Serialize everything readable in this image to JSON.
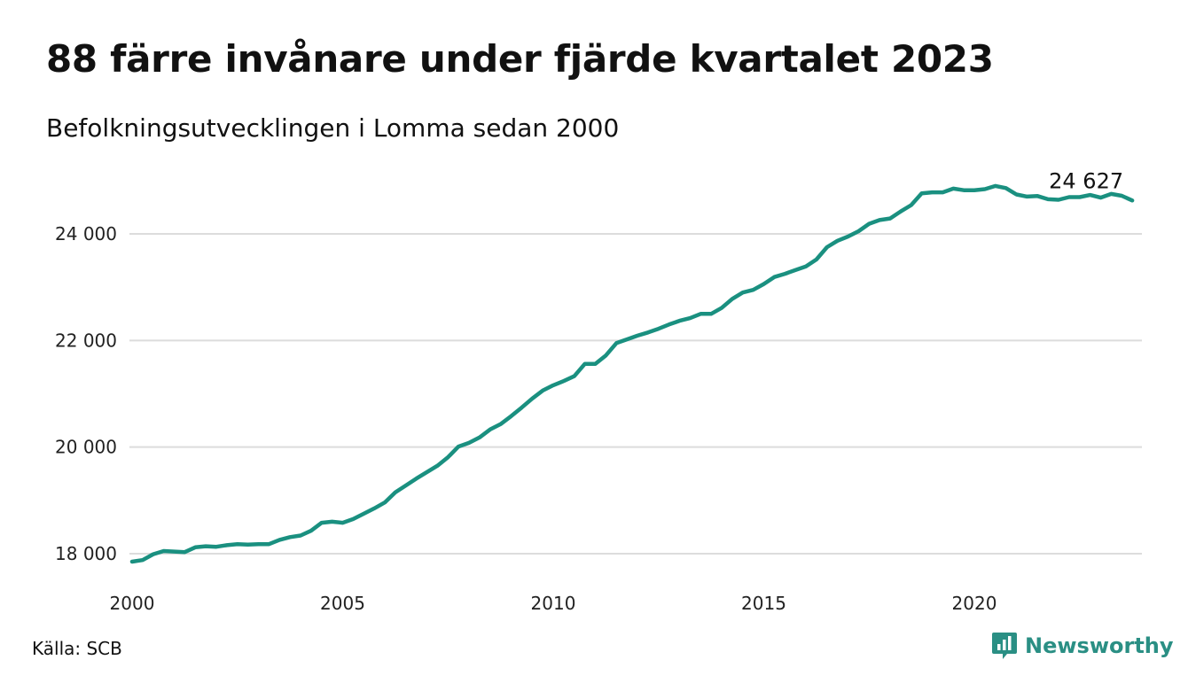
{
  "header": {
    "title": "88 färre invånare under fjärde kvartalet 2023",
    "subtitle": "Befolkningsutvecklingen i Lomma sedan 2000"
  },
  "footer": {
    "source": "Källa: SCB",
    "brand": "Newsworthy",
    "brand_icon": "newsworthy-logo-icon"
  },
  "colors": {
    "line": "#1a9080",
    "grid": "#dcdcdc",
    "brand": "#2a8f84"
  },
  "chart_data": {
    "type": "line",
    "title": "88 färre invånare under fjärde kvartalet 2023",
    "subtitle": "Befolkningsutvecklingen i Lomma sedan 2000",
    "xlabel": "",
    "ylabel": "",
    "x_ticks": [
      2000,
      2005,
      2010,
      2015,
      2020
    ],
    "x_tick_labels": [
      "2000",
      "2005",
      "2010",
      "2015",
      "2020"
    ],
    "y_ticks": [
      18000,
      20000,
      22000,
      24000
    ],
    "y_tick_labels": [
      "18 000",
      "20 000",
      "22 000",
      "24 000"
    ],
    "xlim": [
      2000,
      2024
    ],
    "ylim": [
      17800,
      25100
    ],
    "grid": "horizontal",
    "end_label": "24 627",
    "x": [
      2000.0,
      2000.25,
      2000.5,
      2000.75,
      2001.0,
      2001.25,
      2001.5,
      2001.75,
      2002.0,
      2002.25,
      2002.5,
      2002.75,
      2003.0,
      2003.25,
      2003.5,
      2003.75,
      2004.0,
      2004.25,
      2004.5,
      2004.75,
      2005.0,
      2005.25,
      2005.5,
      2005.75,
      2006.0,
      2006.25,
      2006.5,
      2006.75,
      2007.0,
      2007.25,
      2007.5,
      2007.75,
      2008.0,
      2008.25,
      2008.5,
      2008.75,
      2009.0,
      2009.25,
      2009.5,
      2009.75,
      2010.0,
      2010.25,
      2010.5,
      2010.75,
      2011.0,
      2011.25,
      2011.5,
      2011.75,
      2012.0,
      2012.25,
      2012.5,
      2012.75,
      2013.0,
      2013.25,
      2013.5,
      2013.75,
      2014.0,
      2014.25,
      2014.5,
      2014.75,
      2015.0,
      2015.25,
      2015.5,
      2015.75,
      2016.0,
      2016.25,
      2016.5,
      2016.75,
      2017.0,
      2017.25,
      2017.5,
      2017.75,
      2018.0,
      2018.25,
      2018.5,
      2018.75,
      2019.0,
      2019.25,
      2019.5,
      2019.75,
      2020.0,
      2020.25,
      2020.5,
      2020.75,
      2021.0,
      2021.25,
      2021.5,
      2021.75,
      2022.0,
      2022.25,
      2022.5,
      2022.75,
      2023.0,
      2023.25,
      2023.5,
      2023.75
    ],
    "y": [
      17850,
      17880,
      17990,
      18050,
      18040,
      18030,
      18120,
      18140,
      18130,
      18160,
      18180,
      18170,
      18180,
      18180,
      18260,
      18310,
      18340,
      18430,
      18580,
      18600,
      18580,
      18650,
      18750,
      18850,
      18960,
      19150,
      19280,
      19410,
      19530,
      19650,
      19810,
      20010,
      20080,
      20180,
      20330,
      20430,
      20580,
      20740,
      20910,
      21060,
      21160,
      21240,
      21330,
      21560,
      21560,
      21720,
      21950,
      22020,
      22090,
      22150,
      22220,
      22300,
      22370,
      22420,
      22500,
      22500,
      22610,
      22780,
      22900,
      22950,
      23060,
      23190,
      23250,
      23320,
      23390,
      23520,
      23750,
      23870,
      23950,
      24050,
      24190,
      24260,
      24290,
      24420,
      24540,
      24760,
      24780,
      24780,
      24850,
      24820,
      24820,
      24840,
      24900,
      24860,
      24740,
      24700,
      24710,
      24650,
      24640,
      24690,
      24690,
      24730,
      24680,
      24750,
      24715,
      24627
    ]
  }
}
